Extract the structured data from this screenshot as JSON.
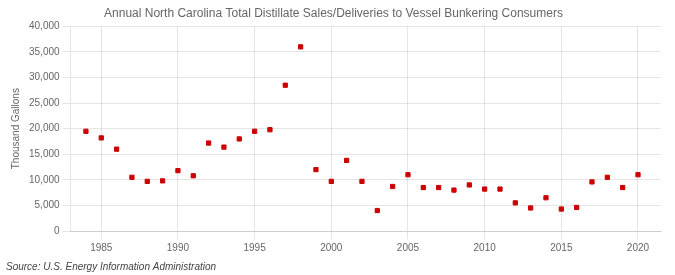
{
  "chart_data": {
    "type": "scatter",
    "title": "Annual North Carolina Total Distillate Sales/Deliveries to Vessel Bunkering Consumers",
    "ylabel": "Thousand Gallons",
    "source": "Source: U.S. Energy Information Administration",
    "x": [
      1984,
      1985,
      1986,
      1987,
      1988,
      1989,
      1990,
      1991,
      1992,
      1993,
      1994,
      1995,
      1996,
      1997,
      1998,
      1999,
      2000,
      2001,
      2002,
      2003,
      2004,
      2005,
      2006,
      2007,
      2008,
      2009,
      2010,
      2011,
      2012,
      2013,
      2014,
      2015,
      2016,
      2017,
      2018,
      2019,
      2020
    ],
    "values": [
      19500,
      18200,
      16000,
      10500,
      9700,
      9800,
      11800,
      10800,
      17200,
      16400,
      18000,
      19500,
      19800,
      28500,
      36000,
      12000,
      9700,
      13800,
      9700,
      4000,
      8700,
      11000,
      8500,
      8500,
      8000,
      9000,
      8200,
      8200,
      5500,
      4500,
      6500,
      4300,
      4600,
      9600,
      10500,
      8500,
      11000
    ],
    "color": "#cc0000",
    "marker": "square",
    "xlim": [
      1983.0,
      2021.5
    ],
    "xticks": [
      1985,
      1990,
      1995,
      2000,
      2005,
      2010,
      2015,
      2020
    ],
    "ylim": [
      0,
      40000
    ],
    "yticks": [
      0,
      {
        "value": 5000,
        "label": "5,000"
      },
      {
        "value": 10000,
        "label": "10,000"
      },
      {
        "value": 15000,
        "label": "15,000"
      },
      {
        "value": 20000,
        "label": "20,000"
      },
      {
        "value": 25000,
        "label": "25,000"
      },
      {
        "value": 30000,
        "label": "30,000"
      },
      {
        "value": 35000,
        "label": "35,000"
      },
      {
        "value": 40000,
        "label": "40,000"
      }
    ],
    "grid": true
  }
}
